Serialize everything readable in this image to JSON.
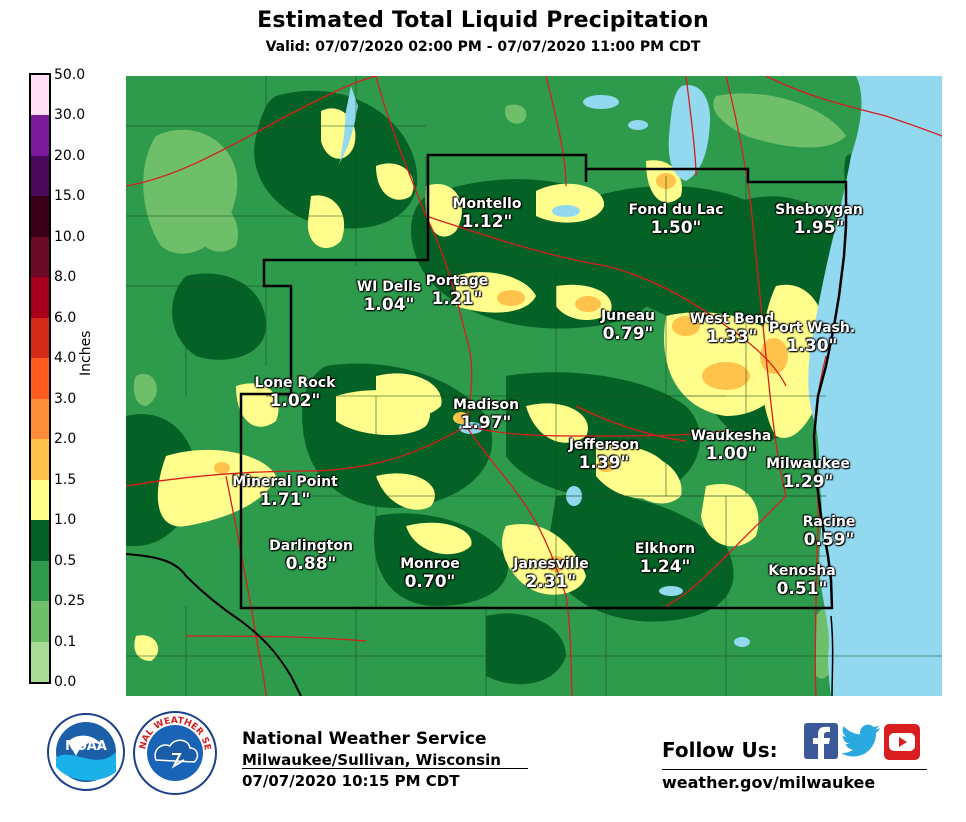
{
  "title": "Estimated Total Liquid Precipitation",
  "subtitle": "Valid: 07/07/2020 02:00 PM - 07/07/2020 11:00 PM CDT",
  "legend": {
    "unit_label": "Inches",
    "levels": [
      {
        "label": "50.0",
        "color": "#fde0f6"
      },
      {
        "label": "30.0",
        "color": "#7a1a9a"
      },
      {
        "label": "20.0",
        "color": "#4a0a5c"
      },
      {
        "label": "15.0",
        "color": "#3a0018"
      },
      {
        "label": "10.0",
        "color": "#6a0a26"
      },
      {
        "label": "8.0",
        "color": "#a8001c"
      },
      {
        "label": "6.0",
        "color": "#d42a1a"
      },
      {
        "label": "4.0",
        "color": "#ff5a20"
      },
      {
        "label": "3.0",
        "color": "#ff8c38"
      },
      {
        "label": "2.0",
        "color": "#ffc24a"
      },
      {
        "label": "1.5",
        "color": "#fffd8c"
      },
      {
        "label": "1.0",
        "color": "#056226"
      },
      {
        "label": "0.5",
        "color": "#2e9a4c"
      },
      {
        "label": "0.25",
        "color": "#6fbf6a"
      },
      {
        "label": "0.1",
        "color": "#a8dc98"
      },
      {
        "label": "0.0",
        "color": "#f0f0f0"
      }
    ]
  },
  "map": {
    "lake_color": "#92d9f0",
    "base_color": "#2e9a4c"
  },
  "cities": [
    {
      "name": "Montello",
      "value": "1.12\""
    },
    {
      "name": "Fond du Lac",
      "value": "1.50\""
    },
    {
      "name": "Sheboygan",
      "value": "1.95\""
    },
    {
      "name": "WI Dells",
      "value": "1.04\""
    },
    {
      "name": "Portage",
      "value": "1.21\""
    },
    {
      "name": "Juneau",
      "value": "0.79\""
    },
    {
      "name": "West Bend",
      "value": "1.33\""
    },
    {
      "name": "Port Wash.",
      "value": "1.30\""
    },
    {
      "name": "Lone Rock",
      "value": "1.02\""
    },
    {
      "name": "Madison",
      "value": "1.97\""
    },
    {
      "name": "Jefferson",
      "value": "1.39\""
    },
    {
      "name": "Waukesha",
      "value": "1.00\""
    },
    {
      "name": "Milwaukee",
      "value": "1.29\""
    },
    {
      "name": "Mineral Point",
      "value": "1.71\""
    },
    {
      "name": "Racine",
      "value": "0.59\""
    },
    {
      "name": "Darlington",
      "value": "0.88\""
    },
    {
      "name": "Monroe",
      "value": "0.70\""
    },
    {
      "name": "Janesville",
      "value": "2.31\""
    },
    {
      "name": "Elkhorn",
      "value": "1.24\""
    },
    {
      "name": "Kenosha",
      "value": "0.51\""
    }
  ],
  "footer": {
    "org": "National Weather Service",
    "office": "Milwaukee/Sullivan, Wisconsin",
    "issued": "07/07/2020 10:15 PM CDT",
    "follow": "Follow Us:",
    "url": "weather.gov/milwaukee",
    "noaa_logo_text": "NOAA",
    "nws_logo_text": "NATIONAL WEATHER SERVICE",
    "social_icons": [
      "facebook-icon",
      "twitter-icon",
      "youtube-icon"
    ]
  }
}
